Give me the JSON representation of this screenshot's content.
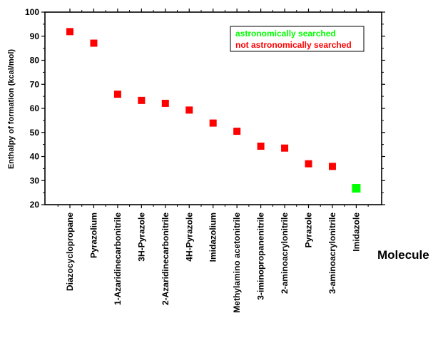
{
  "chart_data": {
    "type": "scatter",
    "ylabel": "Enthalpy of formation (kcal/mol)",
    "xlabel": "Molecule",
    "ylim": [
      20,
      100
    ],
    "yticks": [
      20,
      30,
      40,
      50,
      60,
      70,
      80,
      90,
      100
    ],
    "grid": false,
    "legend_position": "top-right",
    "categories": [
      "Diazocyclopropane",
      "Pyrazolium",
      "1-Azaridinecarbonitrile",
      "3H-Pyrazole",
      "2-Azaridinecarbonitrile",
      "4H-Pyrazole",
      "Imidazolium",
      "Methylamino acetonitrile",
      "3-iminopropanenitrile",
      "2-aminoacrylonitrile",
      "Pyrazole",
      "3-aminoacrylonitrile",
      "Imidazole"
    ],
    "series": [
      {
        "name": "astronomically searched",
        "color": "#00ff00",
        "points": [
          {
            "x": "Imidazole",
            "y": 26.8
          }
        ]
      },
      {
        "name": "not astronomically searched",
        "color": "#ff0000",
        "points": [
          {
            "x": "Diazocyclopropane",
            "y": 91.9
          },
          {
            "x": "Pyrazolium",
            "y": 87.1
          },
          {
            "x": "1-Azaridinecarbonitrile",
            "y": 65.9
          },
          {
            "x": "3H-Pyrazole",
            "y": 63.3
          },
          {
            "x": "2-Azaridinecarbonitrile",
            "y": 62.1
          },
          {
            "x": "4H-Pyrazole",
            "y": 59.3
          },
          {
            "x": "Imidazolium",
            "y": 53.9
          },
          {
            "x": "Methylamino acetonitrile",
            "y": 50.5
          },
          {
            "x": "3-iminopropanenitrile",
            "y": 44.3
          },
          {
            "x": "2-aminoacrylonitrile",
            "y": 43.5
          },
          {
            "x": "Pyrazole",
            "y": 37.0
          },
          {
            "x": "3-aminoacrylonitrile",
            "y": 35.9
          }
        ]
      }
    ]
  }
}
